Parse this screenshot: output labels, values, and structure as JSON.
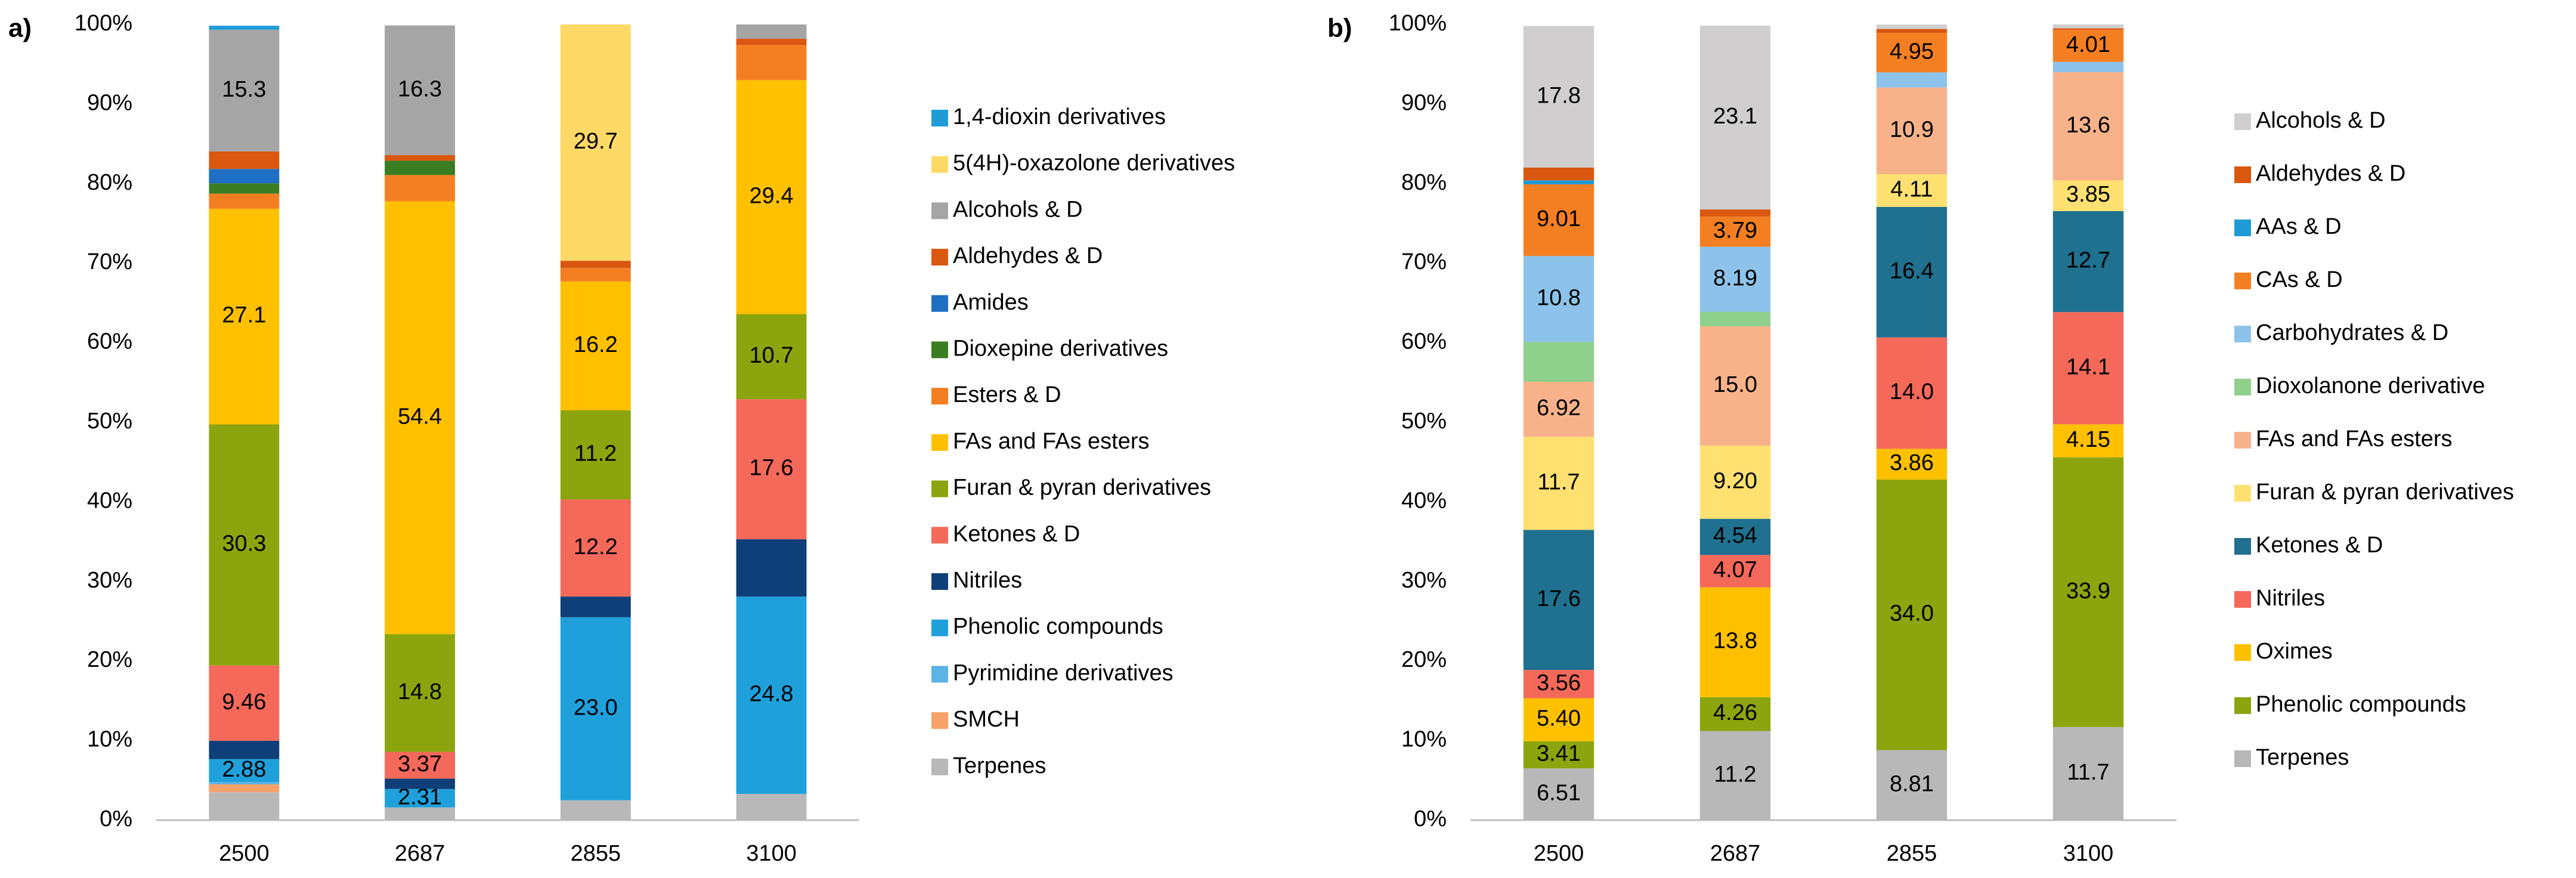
{
  "chart_data": [
    {
      "type": "bar",
      "stacked": true,
      "panel_label": "a)",
      "categories": [
        "2500",
        "2687",
        "2855",
        "3100"
      ],
      "ylim": [
        0,
        100
      ],
      "yticks": [
        {
          "value": 0,
          "label": "0%"
        },
        {
          "value": 10,
          "label": "10%"
        },
        {
          "value": 20,
          "label": "20%"
        },
        {
          "value": 30,
          "label": "30%"
        },
        {
          "value": 40,
          "label": "40%"
        },
        {
          "value": 50,
          "label": "50%"
        },
        {
          "value": 60,
          "label": "60%"
        },
        {
          "value": 70,
          "label": "70%"
        },
        {
          "value": 80,
          "label": "80%"
        },
        {
          "value": 90,
          "label": "90%"
        },
        {
          "value": 100,
          "label": "100%"
        }
      ],
      "grid": false,
      "legend": "right",
      "series": [
        {
          "name": "1,4-dioxin derivatives",
          "color": "#1F9CD8",
          "values": [
            0.5,
            0,
            0,
            0
          ],
          "value_labels": [
            null,
            null,
            null,
            null
          ]
        },
        {
          "name": "5(4H)-oxazolone derivatives",
          "color": "#FFD966",
          "values": [
            0,
            0,
            29.7,
            0
          ],
          "value_labels": [
            null,
            null,
            "29.7",
            null
          ]
        },
        {
          "name": "Alcohols & D",
          "color": "#A5A5A5",
          "values": [
            15.3,
            16.3,
            0,
            1.8
          ],
          "value_labels": [
            "15.3",
            "16.3",
            null,
            null
          ]
        },
        {
          "name": "Aldehydes & D",
          "color": "#D9570F",
          "values": [
            2.2,
            0.7,
            0.9,
            0.8
          ],
          "value_labels": [
            null,
            null,
            null,
            null
          ]
        },
        {
          "name": "Amides",
          "color": "#1F6FC5",
          "values": [
            1.8,
            0,
            0,
            0
          ],
          "value_labels": [
            null,
            null,
            null,
            null
          ]
        },
        {
          "name": "Dioxepine derivatives",
          "color": "#3A7D22",
          "values": [
            1.3,
            1.8,
            0,
            0
          ],
          "value_labels": [
            null,
            null,
            null,
            null
          ]
        },
        {
          "name": "Esters & D",
          "color": "#F47F22",
          "values": [
            1.9,
            3.3,
            1.7,
            4.4
          ],
          "value_labels": [
            null,
            null,
            null,
            null
          ]
        },
        {
          "name": "FAs and FAs esters",
          "color": "#FFC000",
          "values": [
            27.1,
            54.4,
            16.2,
            29.4
          ],
          "value_labels": [
            "27.1",
            "54.4",
            "16.2",
            "29.4"
          ]
        },
        {
          "name": "Furan & pyran derivatives",
          "color": "#8CA40E",
          "values": [
            30.3,
            14.8,
            11.2,
            10.7
          ],
          "value_labels": [
            "30.3",
            "14.8",
            "11.2",
            "10.7"
          ]
        },
        {
          "name": "Ketones & D",
          "color": "#F4695A",
          "values": [
            9.46,
            3.37,
            12.2,
            17.6
          ],
          "value_labels": [
            "9.46",
            "3.37",
            "12.2",
            "17.6"
          ]
        },
        {
          "name": "Nitriles",
          "color": "#0E3F78",
          "values": [
            2.3,
            1.3,
            2.6,
            7.2
          ],
          "value_labels": [
            null,
            null,
            null,
            null
          ]
        },
        {
          "name": "Phenolic compounds",
          "color": "#20A0DB",
          "values": [
            2.88,
            2.31,
            23.0,
            24.8
          ],
          "value_labels": [
            "2.88",
            "2.31",
            "23.0",
            "24.8"
          ]
        },
        {
          "name": "Pyrimidine derivatives",
          "color": "#5BB3E6",
          "values": [
            0.3,
            0,
            0,
            0
          ],
          "value_labels": [
            null,
            null,
            null,
            null
          ]
        },
        {
          "name": "SMCH",
          "color": "#F8A26A",
          "values": [
            1.0,
            0,
            0,
            0
          ],
          "value_labels": [
            null,
            null,
            null,
            null
          ]
        },
        {
          "name": "Terpenes",
          "color": "#B8B8B8",
          "values": [
            3.5,
            1.6,
            2.5,
            3.3
          ],
          "value_labels": [
            null,
            null,
            null,
            null
          ]
        }
      ]
    },
    {
      "type": "bar",
      "stacked": true,
      "panel_label": "b)",
      "categories": [
        "2500",
        "2687",
        "2855",
        "3100"
      ],
      "ylim": [
        0,
        100
      ],
      "yticks": [
        {
          "value": 0,
          "label": "0%"
        },
        {
          "value": 10,
          "label": "10%"
        },
        {
          "value": 20,
          "label": "20%"
        },
        {
          "value": 30,
          "label": "30%"
        },
        {
          "value": 40,
          "label": "40%"
        },
        {
          "value": 50,
          "label": "50%"
        },
        {
          "value": 60,
          "label": "60%"
        },
        {
          "value": 70,
          "label": "70%"
        },
        {
          "value": 80,
          "label": "80%"
        },
        {
          "value": 90,
          "label": "90%"
        },
        {
          "value": 100,
          "label": "100%"
        }
      ],
      "grid": false,
      "legend": "right",
      "series": [
        {
          "name": "Alcohols & D",
          "color": "#D0CECE",
          "values": [
            17.8,
            23.1,
            0.55,
            0.5
          ],
          "value_labels": [
            "17.8",
            "23.1",
            null,
            null
          ]
        },
        {
          "name": "Aldehydes & D",
          "color": "#D9570F",
          "values": [
            1.6,
            0.9,
            0.5,
            0.2
          ],
          "value_labels": [
            null,
            null,
            null,
            null
          ]
        },
        {
          "name": "AAs & D",
          "color": "#1F9AD6",
          "values": [
            0.5,
            0,
            0,
            0
          ],
          "value_labels": [
            null,
            null,
            null,
            null
          ]
        },
        {
          "name": "CAs & D",
          "color": "#F47F22",
          "values": [
            9.01,
            3.79,
            4.95,
            4.01
          ],
          "value_labels": [
            "9.01",
            "3.79",
            "4.95",
            "4.01"
          ]
        },
        {
          "name": "Carbohydrates & D",
          "color": "#8DC3EA",
          "values": [
            10.8,
            8.19,
            1.9,
            1.3
          ],
          "value_labels": [
            "10.8",
            "8.19",
            null,
            null
          ]
        },
        {
          "name": "Dioxolanone derivative",
          "color": "#8FD18C",
          "values": [
            5.0,
            1.8,
            0,
            0
          ],
          "value_labels": [
            null,
            null,
            null,
            null
          ]
        },
        {
          "name": "FAs and FAs esters",
          "color": "#F8B28A",
          "values": [
            6.92,
            15.0,
            10.9,
            13.6
          ],
          "value_labels": [
            "6.92",
            "15.0",
            "10.9",
            "13.6"
          ]
        },
        {
          "name": "Furan & pyran derivatives",
          "color": "#FFE070",
          "values": [
            11.7,
            9.2,
            4.11,
            3.85
          ],
          "value_labels": [
            "11.7",
            "9.20",
            "4.11",
            "3.85"
          ]
        },
        {
          "name": "Ketones & D",
          "color": "#20708F",
          "values": [
            17.6,
            4.54,
            16.4,
            12.7
          ],
          "value_labels": [
            "17.6",
            "4.54",
            "16.4",
            "12.7"
          ]
        },
        {
          "name": "Nitriles",
          "color": "#F4695A",
          "values": [
            3.56,
            4.07,
            14.0,
            14.1
          ],
          "value_labels": [
            "3.56",
            "4.07",
            "14.0",
            "14.1"
          ]
        },
        {
          "name": "Oximes",
          "color": "#FFC000",
          "values": [
            5.4,
            13.8,
            3.86,
            4.15
          ],
          "value_labels": [
            "5.40",
            "13.8",
            "3.86",
            "4.15"
          ]
        },
        {
          "name": "Phenolic compounds",
          "color": "#8CA40E",
          "values": [
            3.41,
            4.26,
            34.0,
            33.9
          ],
          "value_labels": [
            "3.41",
            "4.26",
            "34.0",
            "33.9"
          ]
        },
        {
          "name": "Terpenes",
          "color": "#B8B8B8",
          "values": [
            6.51,
            11.2,
            8.81,
            11.7
          ],
          "value_labels": [
            "6.51",
            "11.2",
            "8.81",
            "11.7"
          ]
        }
      ]
    }
  ]
}
